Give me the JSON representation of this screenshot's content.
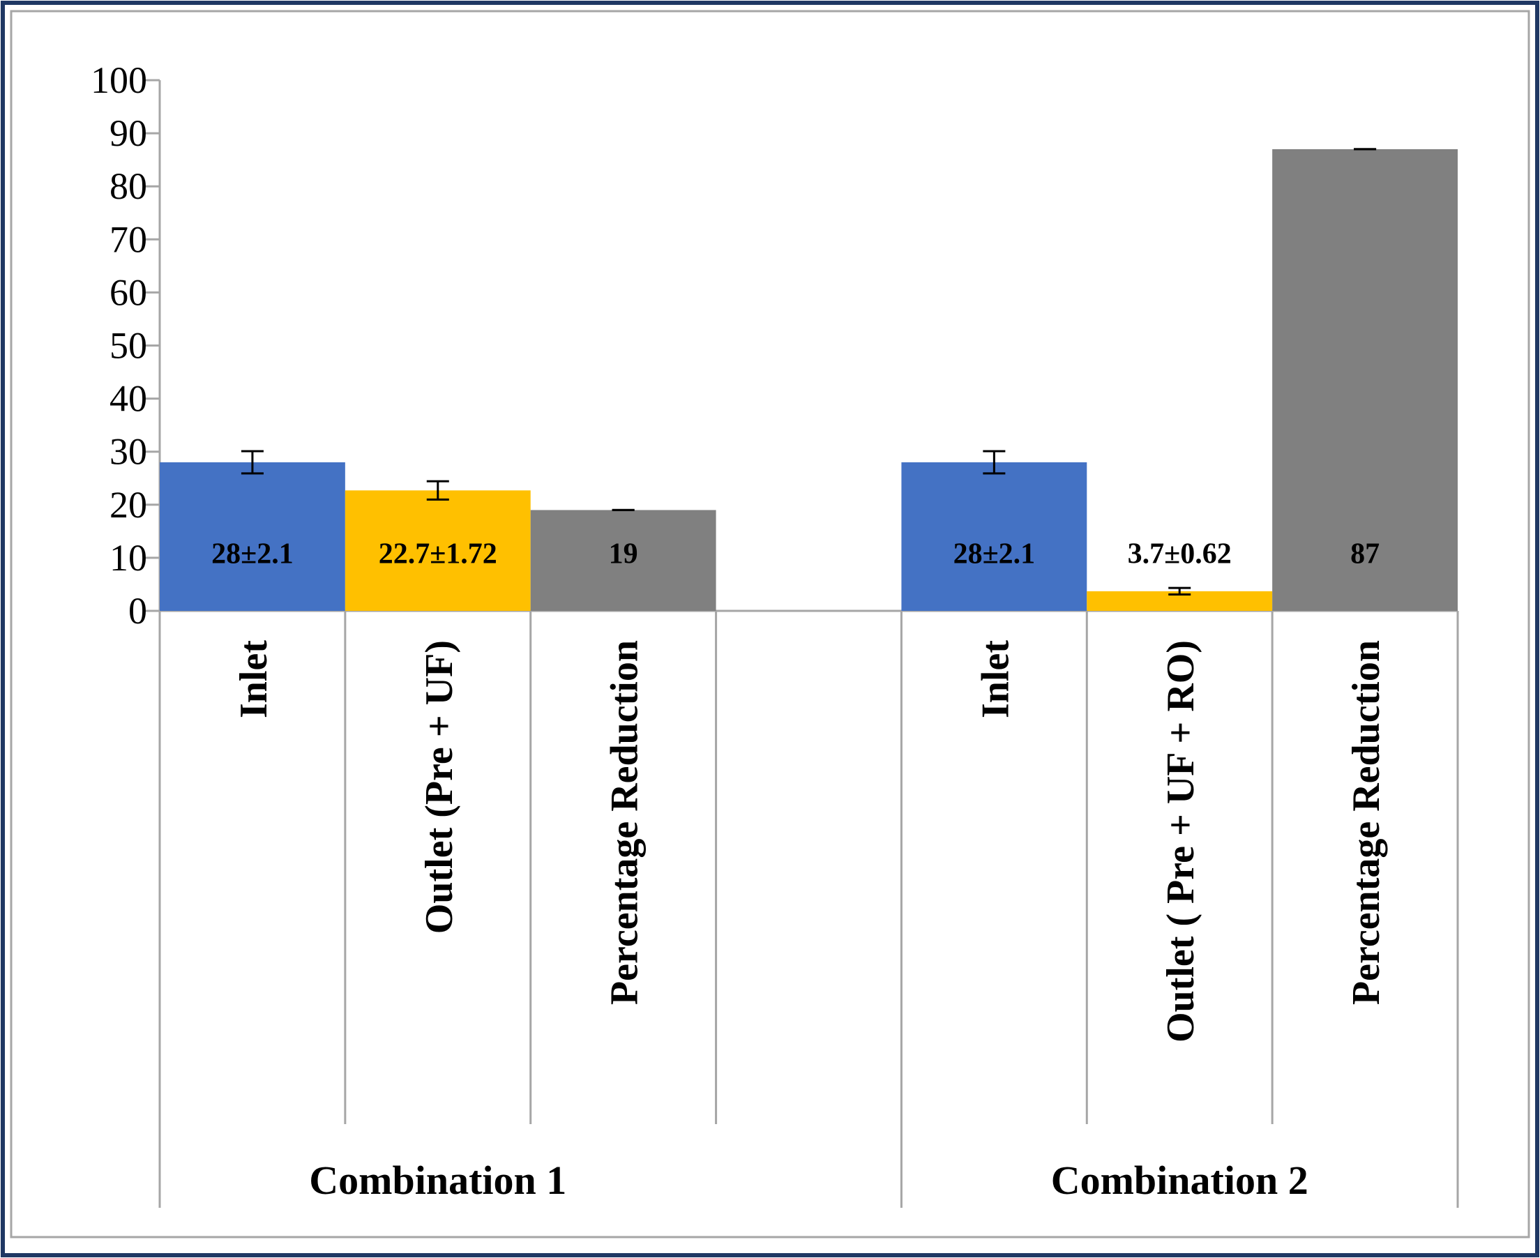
{
  "chart_data": {
    "type": "bar",
    "title": "",
    "xlabel": "",
    "ylabel": "",
    "ylim": [
      0,
      100
    ],
    "yticks": [
      0,
      10,
      20,
      30,
      40,
      50,
      60,
      70,
      80,
      90,
      100
    ],
    "grid": false,
    "legend": "none",
    "groups": [
      {
        "name": "Combination 1",
        "bars": [
          {
            "category": "Inlet",
            "value": 28,
            "error": 2.1,
            "label": "28±2.1",
            "color": "#4472C4"
          },
          {
            "category": "Outlet (Pre + UF)",
            "value": 22.7,
            "error": 1.72,
            "label": "22.7±1.72",
            "color": "#FFC000"
          },
          {
            "category": "Percentage Reduction",
            "value": 19,
            "error": 0,
            "label": "19",
            "color": "#808080"
          }
        ]
      },
      {
        "name": "Combination 2",
        "bars": [
          {
            "category": "Inlet",
            "value": 28,
            "error": 2.1,
            "label": "28±2.1",
            "color": "#4472C4"
          },
          {
            "category": "Outlet ( Pre + UF + RO)",
            "value": 3.7,
            "error": 0.62,
            "label": "3.7±0.62",
            "color": "#FFC000"
          },
          {
            "category": "Percentage Reduction",
            "value": 87,
            "error": 0,
            "label": "87",
            "color": "#808080"
          }
        ]
      }
    ]
  },
  "colors": {
    "border": "#1F3864",
    "frame": "#A6A6A6",
    "axis": "#A6A6A6"
  }
}
